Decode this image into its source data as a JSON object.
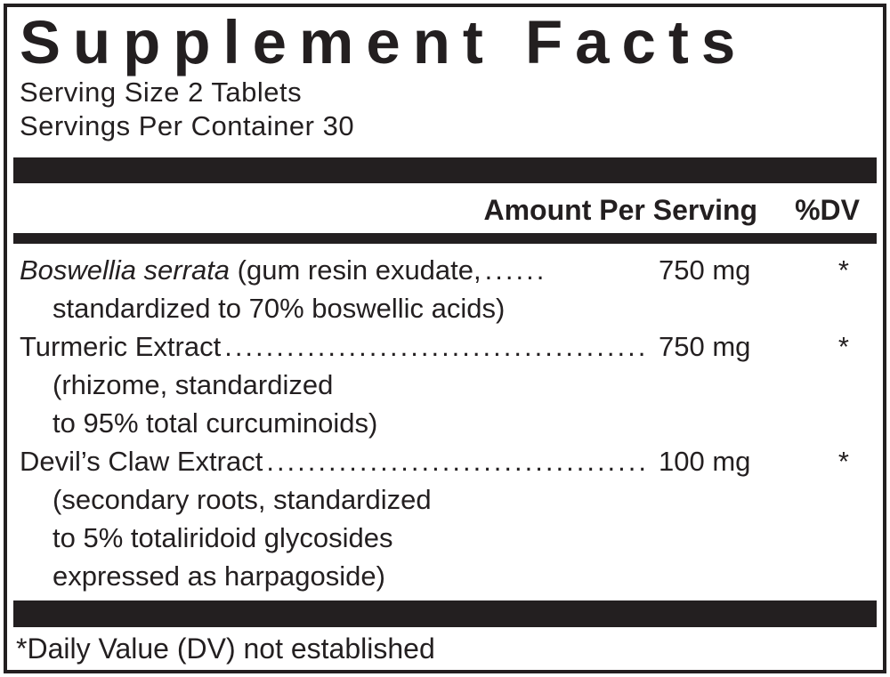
{
  "title": "Supplement Facts",
  "serving_size": "Serving Size 2 Tablets",
  "servings_per_container": "Servings Per Container 30",
  "column_header": {
    "amount_per_serving": "Amount Per Serving",
    "percent_dv": "%DV"
  },
  "rows": [
    {
      "name_italic": "Boswellia serrata",
      "name_rest": " (gum resin exudate,",
      "dots": "......",
      "amount": "750 mg",
      "dv": "*",
      "sublines": [
        "standardized to 70% boswellic acids)"
      ]
    },
    {
      "name": "Turmeric Extract",
      "dots": ".........................................",
      "amount": "750 mg",
      "dv": "*",
      "sublines": [
        "(rhizome, standardized",
        "to 95% total curcuminoids)"
      ]
    },
    {
      "name": "Devil’s Claw Extract",
      "dots": ".....................................",
      "amount": "100 mg",
      "dv": "*",
      "sublines": [
        "(secondary roots, standardized",
        "to 5% totaliridoid glycosides",
        "expressed as harpagoside)"
      ]
    }
  ],
  "footnote": "*Daily Value (DV) not established",
  "colors": {
    "ink": "#231f20",
    "background": "#ffffff"
  }
}
